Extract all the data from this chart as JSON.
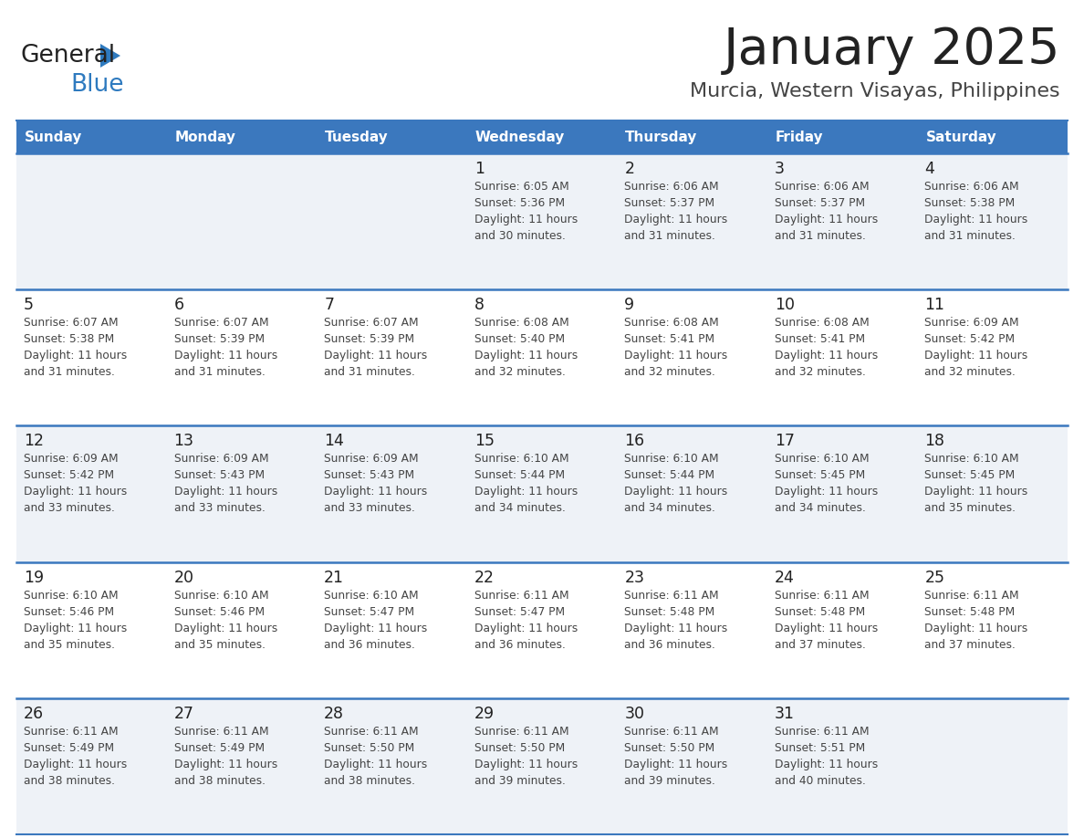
{
  "title": "January 2025",
  "subtitle": "Murcia, Western Visayas, Philippines",
  "header_bg_color": "#3b78be",
  "header_text_color": "#ffffff",
  "day_names": [
    "Sunday",
    "Monday",
    "Tuesday",
    "Wednesday",
    "Thursday",
    "Friday",
    "Saturday"
  ],
  "title_color": "#222222",
  "subtitle_color": "#444444",
  "cell_bg_row0": "#f0f4f8",
  "cell_bg_row1": "#ffffff",
  "cell_bg_row2": "#f0f4f8",
  "cell_bg_row3": "#ffffff",
  "cell_bg_row4": "#f0f4f8",
  "separator_color": "#3b78be",
  "day_number_color": "#222222",
  "cell_text_color": "#444444",
  "logo_general_color": "#222222",
  "logo_blue_color": "#2e7abf",
  "logo_triangle_color": "#2e7abf",
  "calendar": [
    [
      {
        "day": "",
        "sunrise": "",
        "sunset": "",
        "daylight": ""
      },
      {
        "day": "",
        "sunrise": "",
        "sunset": "",
        "daylight": ""
      },
      {
        "day": "",
        "sunrise": "",
        "sunset": "",
        "daylight": ""
      },
      {
        "day": "1",
        "sunrise": "Sunrise: 6:05 AM",
        "sunset": "Sunset: 5:36 PM",
        "daylight": "Daylight: 11 hours and 30 minutes."
      },
      {
        "day": "2",
        "sunrise": "Sunrise: 6:06 AM",
        "sunset": "Sunset: 5:37 PM",
        "daylight": "Daylight: 11 hours and 31 minutes."
      },
      {
        "day": "3",
        "sunrise": "Sunrise: 6:06 AM",
        "sunset": "Sunset: 5:37 PM",
        "daylight": "Daylight: 11 hours and 31 minutes."
      },
      {
        "day": "4",
        "sunrise": "Sunrise: 6:06 AM",
        "sunset": "Sunset: 5:38 PM",
        "daylight": "Daylight: 11 hours and 31 minutes."
      }
    ],
    [
      {
        "day": "5",
        "sunrise": "Sunrise: 6:07 AM",
        "sunset": "Sunset: 5:38 PM",
        "daylight": "Daylight: 11 hours and 31 minutes."
      },
      {
        "day": "6",
        "sunrise": "Sunrise: 6:07 AM",
        "sunset": "Sunset: 5:39 PM",
        "daylight": "Daylight: 11 hours and 31 minutes."
      },
      {
        "day": "7",
        "sunrise": "Sunrise: 6:07 AM",
        "sunset": "Sunset: 5:39 PM",
        "daylight": "Daylight: 11 hours and 31 minutes."
      },
      {
        "day": "8",
        "sunrise": "Sunrise: 6:08 AM",
        "sunset": "Sunset: 5:40 PM",
        "daylight": "Daylight: 11 hours and 32 minutes."
      },
      {
        "day": "9",
        "sunrise": "Sunrise: 6:08 AM",
        "sunset": "Sunset: 5:41 PM",
        "daylight": "Daylight: 11 hours and 32 minutes."
      },
      {
        "day": "10",
        "sunrise": "Sunrise: 6:08 AM",
        "sunset": "Sunset: 5:41 PM",
        "daylight": "Daylight: 11 hours and 32 minutes."
      },
      {
        "day": "11",
        "sunrise": "Sunrise: 6:09 AM",
        "sunset": "Sunset: 5:42 PM",
        "daylight": "Daylight: 11 hours and 32 minutes."
      }
    ],
    [
      {
        "day": "12",
        "sunrise": "Sunrise: 6:09 AM",
        "sunset": "Sunset: 5:42 PM",
        "daylight": "Daylight: 11 hours and 33 minutes."
      },
      {
        "day": "13",
        "sunrise": "Sunrise: 6:09 AM",
        "sunset": "Sunset: 5:43 PM",
        "daylight": "Daylight: 11 hours and 33 minutes."
      },
      {
        "day": "14",
        "sunrise": "Sunrise: 6:09 AM",
        "sunset": "Sunset: 5:43 PM",
        "daylight": "Daylight: 11 hours and 33 minutes."
      },
      {
        "day": "15",
        "sunrise": "Sunrise: 6:10 AM",
        "sunset": "Sunset: 5:44 PM",
        "daylight": "Daylight: 11 hours and 34 minutes."
      },
      {
        "day": "16",
        "sunrise": "Sunrise: 6:10 AM",
        "sunset": "Sunset: 5:44 PM",
        "daylight": "Daylight: 11 hours and 34 minutes."
      },
      {
        "day": "17",
        "sunrise": "Sunrise: 6:10 AM",
        "sunset": "Sunset: 5:45 PM",
        "daylight": "Daylight: 11 hours and 34 minutes."
      },
      {
        "day": "18",
        "sunrise": "Sunrise: 6:10 AM",
        "sunset": "Sunset: 5:45 PM",
        "daylight": "Daylight: 11 hours and 35 minutes."
      }
    ],
    [
      {
        "day": "19",
        "sunrise": "Sunrise: 6:10 AM",
        "sunset": "Sunset: 5:46 PM",
        "daylight": "Daylight: 11 hours and 35 minutes."
      },
      {
        "day": "20",
        "sunrise": "Sunrise: 6:10 AM",
        "sunset": "Sunset: 5:46 PM",
        "daylight": "Daylight: 11 hours and 35 minutes."
      },
      {
        "day": "21",
        "sunrise": "Sunrise: 6:10 AM",
        "sunset": "Sunset: 5:47 PM",
        "daylight": "Daylight: 11 hours and 36 minutes."
      },
      {
        "day": "22",
        "sunrise": "Sunrise: 6:11 AM",
        "sunset": "Sunset: 5:47 PM",
        "daylight": "Daylight: 11 hours and 36 minutes."
      },
      {
        "day": "23",
        "sunrise": "Sunrise: 6:11 AM",
        "sunset": "Sunset: 5:48 PM",
        "daylight": "Daylight: 11 hours and 36 minutes."
      },
      {
        "day": "24",
        "sunrise": "Sunrise: 6:11 AM",
        "sunset": "Sunset: 5:48 PM",
        "daylight": "Daylight: 11 hours and 37 minutes."
      },
      {
        "day": "25",
        "sunrise": "Sunrise: 6:11 AM",
        "sunset": "Sunset: 5:48 PM",
        "daylight": "Daylight: 11 hours and 37 minutes."
      }
    ],
    [
      {
        "day": "26",
        "sunrise": "Sunrise: 6:11 AM",
        "sunset": "Sunset: 5:49 PM",
        "daylight": "Daylight: 11 hours and 38 minutes."
      },
      {
        "day": "27",
        "sunrise": "Sunrise: 6:11 AM",
        "sunset": "Sunset: 5:49 PM",
        "daylight": "Daylight: 11 hours and 38 minutes."
      },
      {
        "day": "28",
        "sunrise": "Sunrise: 6:11 AM",
        "sunset": "Sunset: 5:50 PM",
        "daylight": "Daylight: 11 hours and 38 minutes."
      },
      {
        "day": "29",
        "sunrise": "Sunrise: 6:11 AM",
        "sunset": "Sunset: 5:50 PM",
        "daylight": "Daylight: 11 hours and 39 minutes."
      },
      {
        "day": "30",
        "sunrise": "Sunrise: 6:11 AM",
        "sunset": "Sunset: 5:50 PM",
        "daylight": "Daylight: 11 hours and 39 minutes."
      },
      {
        "day": "31",
        "sunrise": "Sunrise: 6:11 AM",
        "sunset": "Sunset: 5:51 PM",
        "daylight": "Daylight: 11 hours and 40 minutes."
      },
      {
        "day": "",
        "sunrise": "",
        "sunset": "",
        "daylight": ""
      }
    ]
  ],
  "row_bg_colors": [
    "#eef2f7",
    "#ffffff",
    "#eef2f7",
    "#ffffff",
    "#eef2f7"
  ]
}
